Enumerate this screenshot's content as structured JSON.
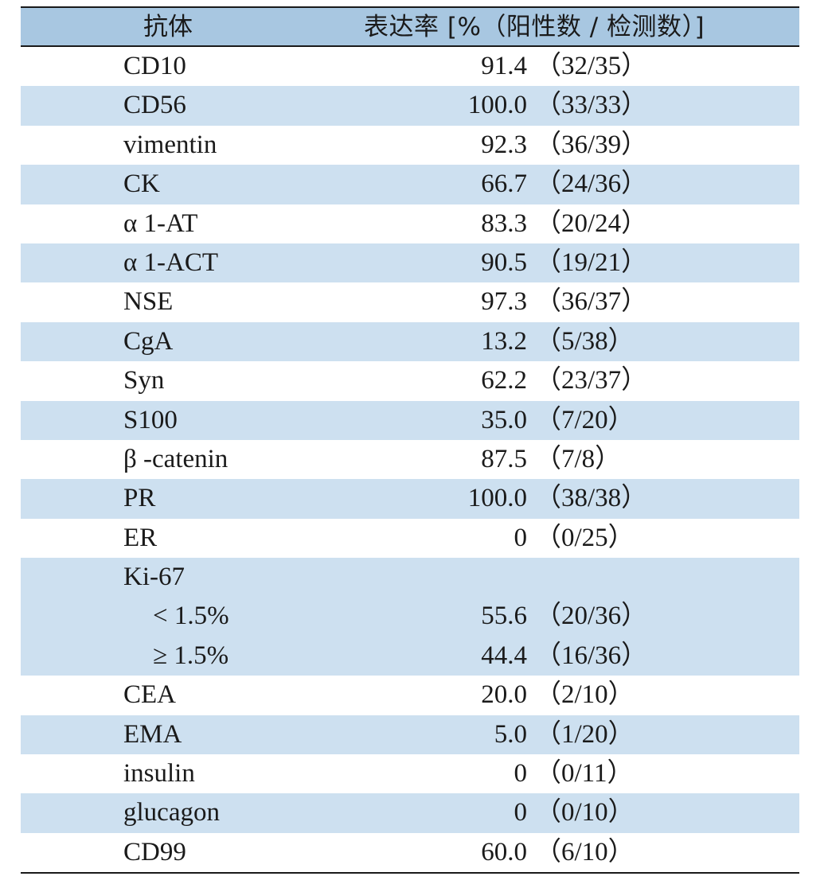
{
  "header": {
    "col1": "抗体",
    "col2": "表达率 [%（阳性数 / 检测数）]"
  },
  "rows": [
    {
      "label": "CD10",
      "value": "91.4",
      "count": "（32/35）"
    },
    {
      "label": "CD56",
      "value": "100.0",
      "count": "（33/33）"
    },
    {
      "label": "vimentin",
      "value": "92.3",
      "count": "（36/39）"
    },
    {
      "label": "CK",
      "value": "66.7",
      "count": "（24/36）"
    },
    {
      "label": "α 1-AT",
      "value": "83.3",
      "count": "（20/24）"
    },
    {
      "label": "α 1-ACT",
      "value": "90.5",
      "count": "（19/21）"
    },
    {
      "label": "NSE",
      "value": "97.3",
      "count": "（36/37）"
    },
    {
      "label": "CgA",
      "value": "13.2",
      "count": "（5/38）"
    },
    {
      "label": "Syn",
      "value": "62.2",
      "count": "（23/37）"
    },
    {
      "label": "S100",
      "value": "35.0",
      "count": "（7/20）"
    },
    {
      "label": "β -catenin",
      "value": "87.5",
      "count": "（7/8）"
    },
    {
      "label": "PR",
      "value": "100.0",
      "count": "（38/38）"
    },
    {
      "label": "ER",
      "value": "0",
      "count": "（0/25）"
    },
    {
      "label": "Ki-67",
      "value": "",
      "count": ""
    },
    {
      "label": "< 1.5%",
      "value": "55.6",
      "count": "（20/36）",
      "sub": true
    },
    {
      "label": "≥ 1.5%",
      "value": "44.4",
      "count": "（16/36）",
      "sub": true
    },
    {
      "label": "CEA",
      "value": "20.0",
      "count": "（2/10）"
    },
    {
      "label": "EMA",
      "value": "5.0",
      "count": "（1/20）"
    },
    {
      "label": "insulin",
      "value": "0",
      "count": "（0/11）"
    },
    {
      "label": "glucagon",
      "value": "0",
      "count": "（0/10）"
    },
    {
      "label": "CD99",
      "value": "60.0",
      "count": "（6/10）"
    }
  ]
}
